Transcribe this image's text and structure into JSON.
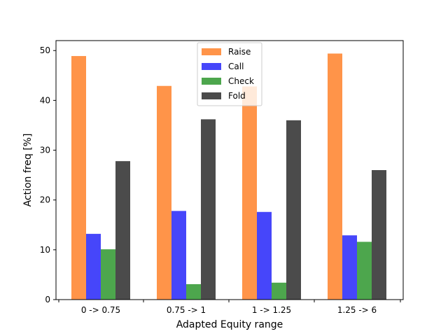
{
  "chart_data": {
    "type": "bar",
    "xlabel": "Adapted Equity range",
    "ylabel": "Action freq [%]",
    "categories": [
      "0 -> 0.75",
      "0.75 -> 1",
      "1 -> 1.25",
      "1.25 -> 6"
    ],
    "ylim": [
      0,
      52
    ],
    "yticks": [
      0,
      10,
      20,
      30,
      40,
      50
    ],
    "series": [
      {
        "name": "Raise",
        "color": "#ff9449",
        "values": [
          48.9,
          42.9,
          42.8,
          49.4
        ]
      },
      {
        "name": "Call",
        "color": "#4646fa",
        "values": [
          13.2,
          17.8,
          17.6,
          12.9
        ]
      },
      {
        "name": "Check",
        "color": "#4da64d",
        "values": [
          10.1,
          3.1,
          3.4,
          11.6
        ]
      },
      {
        "name": "Fold",
        "color": "#4b4b4b",
        "values": [
          27.8,
          36.2,
          36.0,
          26.0
        ]
      }
    ],
    "legend": "top-center",
    "grid": false
  }
}
